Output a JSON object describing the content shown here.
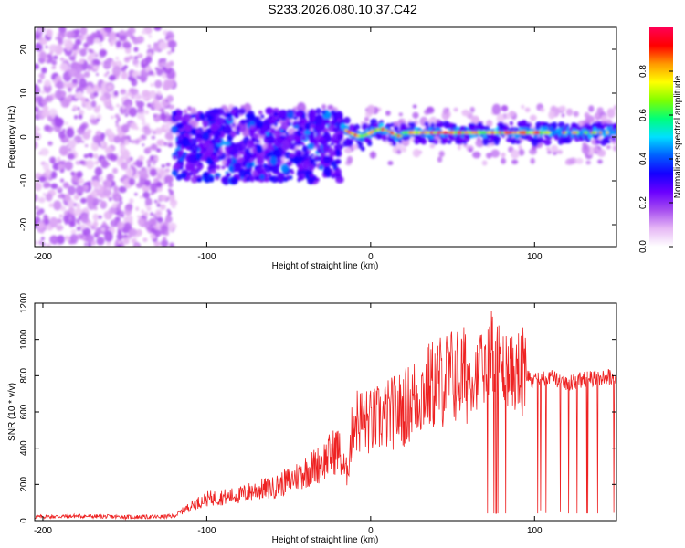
{
  "figure_title": "S233.2026.080.10.37.C42",
  "chart_data": [
    {
      "type": "heatmap",
      "xlabel": "Height of straight line (km)",
      "ylabel": "Frequency (Hz)",
      "xlim": [
        -205,
        150
      ],
      "ylim": [
        -25,
        25
      ],
      "xticks": [
        -200,
        -100,
        0,
        100
      ],
      "yticks": [
        -20,
        -10,
        0,
        10,
        20
      ],
      "colorbar": {
        "label": "Normalized spectral amplitude",
        "range": [
          0.0,
          1.0
        ],
        "ticks": [
          0.0,
          0.2,
          0.4,
          0.6,
          0.8
        ],
        "tick_labels": [
          "0.0",
          "0.2",
          "0.4",
          "0.6",
          "0.8"
        ],
        "colormap": [
          "#ffffff",
          "#e6b7f5",
          "#a64df0",
          "#6a00ff",
          "#1400ff",
          "#0060ff",
          "#00e0ff",
          "#00ff7a",
          "#7fff00",
          "#ffff00",
          "#ff9900",
          "#ff0000",
          "#ff0055"
        ]
      },
      "regions": [
        {
          "name": "noise",
          "x_range": [
            -205,
            -120
          ],
          "freq_spread": 25,
          "amplitude": 0.1
        },
        {
          "name": "scattered signal",
          "x_range": [
            -120,
            -18
          ],
          "freq_range": [
            -10,
            6
          ],
          "amplitude": 0.3
        },
        {
          "name": "coherent line",
          "x_range": [
            -18,
            150
          ],
          "freq_center": 1,
          "amplitude": 0.9
        }
      ]
    },
    {
      "type": "line",
      "xlabel": "Height of straight line (km)",
      "ylabel": "SNR (10 * v/v)",
      "xlim": [
        -205,
        150
      ],
      "ylim": [
        0,
        1200
      ],
      "xticks": [
        -200,
        -100,
        0,
        100
      ],
      "yticks": [
        0,
        200,
        400,
        600,
        800,
        1000,
        1200
      ],
      "color": "#ee2222",
      "series": [
        {
          "name": "SNR",
          "x": [
            -205,
            -180,
            -150,
            -130,
            -120,
            -110,
            -100,
            -90,
            -80,
            -70,
            -60,
            -50,
            -40,
            -30,
            -20,
            -15,
            -10,
            0,
            10,
            20,
            30,
            40,
            50,
            60,
            70,
            75,
            80,
            90,
            100,
            110,
            120,
            130,
            140,
            150
          ],
          "values": [
            20,
            25,
            20,
            20,
            25,
            80,
            120,
            130,
            140,
            170,
            180,
            220,
            270,
            320,
            400,
            250,
            560,
            540,
            580,
            620,
            700,
            760,
            800,
            800,
            830,
            950,
            850,
            800,
            770,
            790,
            760,
            780,
            790,
            800
          ],
          "noise_amplitude_fraction": 0.35,
          "dropouts_to": 40
        }
      ]
    }
  ]
}
